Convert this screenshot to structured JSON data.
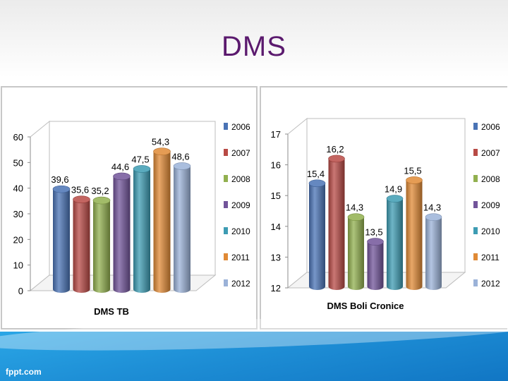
{
  "slide": {
    "title": "DMS",
    "footer": "fppt.com"
  },
  "chart_data": [
    {
      "type": "bar",
      "xlabel": "DMS TB",
      "ylim": [
        0,
        60
      ],
      "yticks": [
        0,
        10,
        20,
        30,
        40,
        50,
        60
      ],
      "grid": false,
      "legend_position": "right",
      "series": [
        {
          "name": "2006",
          "values": [
            39.6
          ],
          "color": "#4a73b5"
        },
        {
          "name": "2007",
          "values": [
            35.6
          ],
          "color": "#b84a45"
        },
        {
          "name": "2008",
          "values": [
            35.2
          ],
          "color": "#92b04f"
        },
        {
          "name": "2009",
          "values": [
            44.6
          ],
          "color": "#72549a"
        },
        {
          "name": "2010",
          "values": [
            47.5
          ],
          "color": "#3d9cb3"
        },
        {
          "name": "2011",
          "values": [
            54.3
          ],
          "color": "#e08a36"
        },
        {
          "name": "2012",
          "values": [
            48.6
          ],
          "color": "#9bb2d8"
        }
      ],
      "data_labels": [
        "39,6",
        "35,6",
        "35,2",
        "44,6",
        "47,5",
        "54,3",
        "48,6"
      ]
    },
    {
      "type": "bar",
      "xlabel": "DMS Boli Cronice",
      "ylim": [
        12,
        17
      ],
      "yticks": [
        12,
        13,
        14,
        15,
        16,
        17
      ],
      "grid": false,
      "legend_position": "right",
      "series": [
        {
          "name": "2006",
          "values": [
            15.4
          ],
          "color": "#4a73b5"
        },
        {
          "name": "2007",
          "values": [
            16.2
          ],
          "color": "#b84a45"
        },
        {
          "name": "2008",
          "values": [
            14.3
          ],
          "color": "#92b04f"
        },
        {
          "name": "2009",
          "values": [
            13.5
          ],
          "color": "#72549a"
        },
        {
          "name": "2010",
          "values": [
            14.9
          ],
          "color": "#3d9cb3"
        },
        {
          "name": "2011",
          "values": [
            15.5
          ],
          "color": "#e08a36"
        },
        {
          "name": "2012",
          "values": [
            14.3
          ],
          "color": "#9bb2d8"
        }
      ],
      "data_labels": [
        "15,4",
        "16,2",
        "14,3",
        "13,5",
        "14,9",
        "15,5",
        "14,3"
      ]
    }
  ]
}
